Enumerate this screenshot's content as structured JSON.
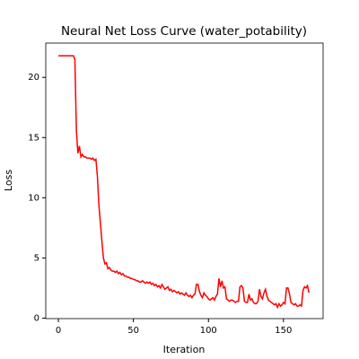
{
  "chart_data": {
    "type": "line",
    "title": "Neural Net Loss Curve (water_potability)",
    "xlabel": "Iteration",
    "ylabel": "Loss",
    "color": "#ff0000",
    "values": [
      21.8,
      21.8,
      21.8,
      21.8,
      21.8,
      21.8,
      21.8,
      21.8,
      21.8,
      21.8,
      21.8,
      21.5,
      15.6,
      13.7,
      14.3,
      13.4,
      13.6,
      13.4,
      13.4,
      13.3,
      13.3,
      13.3,
      13.2,
      13.3,
      13.1,
      13.2,
      11.8,
      9.4,
      7.9,
      6.4,
      5.0,
      4.5,
      4.6,
      4.1,
      4.2,
      4.0,
      3.9,
      3.9,
      3.8,
      3.9,
      3.7,
      3.8,
      3.6,
      3.7,
      3.5,
      3.5,
      3.4,
      3.4,
      3.3,
      3.3,
      3.2,
      3.2,
      3.1,
      3.1,
      3.0,
      3.0,
      3.1,
      3.0,
      2.9,
      3.0,
      2.9,
      3.0,
      2.8,
      2.9,
      2.7,
      2.8,
      2.6,
      2.7,
      2.5,
      2.8,
      2.6,
      2.4,
      2.5,
      2.6,
      2.3,
      2.4,
      2.2,
      2.3,
      2.2,
      2.1,
      2.2,
      2.0,
      2.1,
      2.0,
      1.9,
      2.1,
      1.9,
      1.8,
      1.9,
      1.7,
      1.9,
      2.0,
      2.8,
      2.8,
      2.2,
      1.9,
      1.7,
      2.1,
      1.9,
      1.8,
      1.6,
      1.5,
      1.6,
      1.7,
      1.5,
      1.8,
      2.0,
      3.3,
      2.6,
      3.1,
      2.5,
      2.6,
      1.6,
      1.5,
      1.4,
      1.5,
      1.5,
      1.4,
      1.3,
      1.4,
      1.4,
      2.6,
      2.7,
      2.5,
      1.4,
      1.3,
      1.3,
      2.0,
      1.5,
      1.6,
      1.3,
      1.2,
      1.2,
      1.4,
      2.4,
      1.8,
      1.6,
      2.1,
      2.4,
      1.8,
      1.5,
      1.4,
      1.3,
      1.2,
      1.1,
      1.2,
      0.9,
      1.2,
      1.0,
      1.1,
      1.3,
      1.2,
      2.5,
      2.5,
      2.0,
      1.3,
      1.2,
      1.1,
      1.2,
      1.0,
      1.0,
      1.1,
      1.0,
      2.3,
      2.6,
      2.5,
      2.7,
      2.1
    ],
    "xlim": [
      -8.4,
      176.4
    ],
    "xticks": [
      0,
      50,
      100,
      150
    ],
    "ylim": [
      -0.04,
      22.85
    ],
    "yticks": [
      0,
      5,
      10,
      15,
      20
    ]
  }
}
